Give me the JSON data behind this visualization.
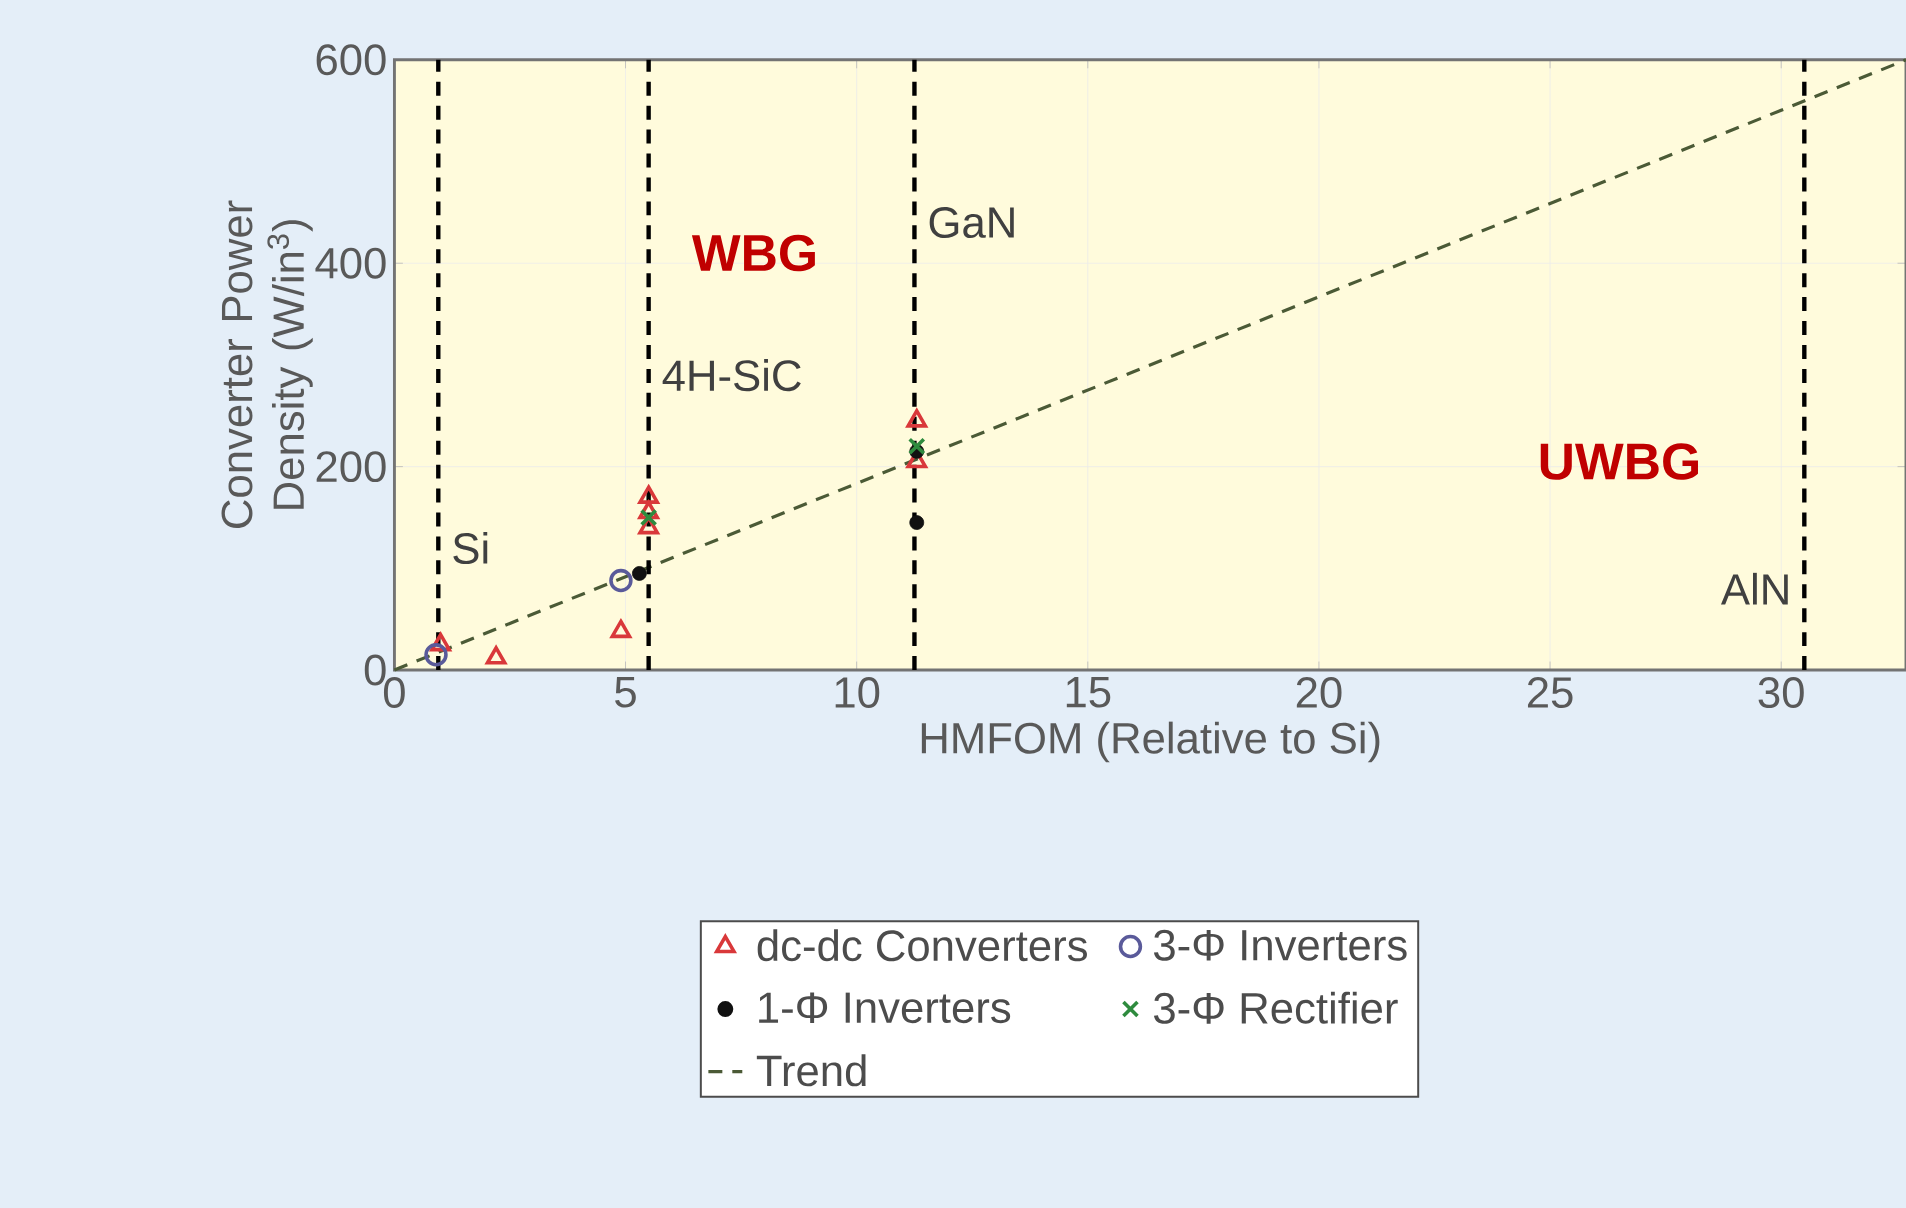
{
  "chart_data": {
    "type": "scatter",
    "xlabel": "HMFOM (Relative to Si)",
    "ylabel": "Converter Power Density (W/in$^{3}$)",
    "xlim": [
      0,
      32.7
    ],
    "ylim": [
      0,
      600
    ],
    "xticks": [
      0,
      5,
      10,
      15,
      20,
      25,
      30
    ],
    "yticks": [
      0,
      200,
      400,
      600
    ],
    "grid": true,
    "legend": "bottom",
    "series": [
      {
        "name": "dc-dc Converters",
        "color": "#d9383a",
        "marker": "triangle",
        "x": [
          1.0,
          2.2,
          4.9,
          5.5,
          5.5,
          5.5,
          11.3,
          11.3
        ],
        "values": [
          25,
          12,
          38,
          170,
          155,
          140,
          245,
          205
        ]
      },
      {
        "name": "3-Φ Inverters",
        "color": "#5a5a9a",
        "marker": "circle",
        "x": [
          0.9,
          4.9
        ],
        "values": [
          15,
          88
        ]
      },
      {
        "name": "1-Φ Inverters",
        "color": "#111111",
        "marker": "circle",
        "x": [
          5.3,
          11.3,
          11.3
        ],
        "values": [
          95,
          215,
          145
        ]
      },
      {
        "name": "3-Φ Rectifier",
        "color": "#2e8b3e",
        "marker": "cross",
        "x": [
          5.5,
          11.3
        ],
        "values": [
          150,
          220
        ]
      },
      {
        "name": "Trend",
        "type": "line",
        "line_style": "dashed",
        "marker": "none",
        "color": "#4b5a36",
        "x": [
          0,
          32.7
        ],
        "values": [
          0,
          600
        ]
      }
    ],
    "ref_lines": [
      {
        "axis": "x",
        "value": 0.95,
        "label": "Si",
        "color": "#000000",
        "line_style": "dashed"
      },
      {
        "axis": "x",
        "value": 5.5,
        "label": "4H-SiC",
        "color": "#000000",
        "line_style": "dashed"
      },
      {
        "axis": "x",
        "value": 11.25,
        "label": "GaN",
        "color": "#000000",
        "line_style": "dashed"
      },
      {
        "axis": "x",
        "value": 30.5,
        "label": "AlN",
        "color": "#000000",
        "line_style": "dashed"
      }
    ],
    "annotations": [
      "WBG",
      "UWBG"
    ]
  }
}
